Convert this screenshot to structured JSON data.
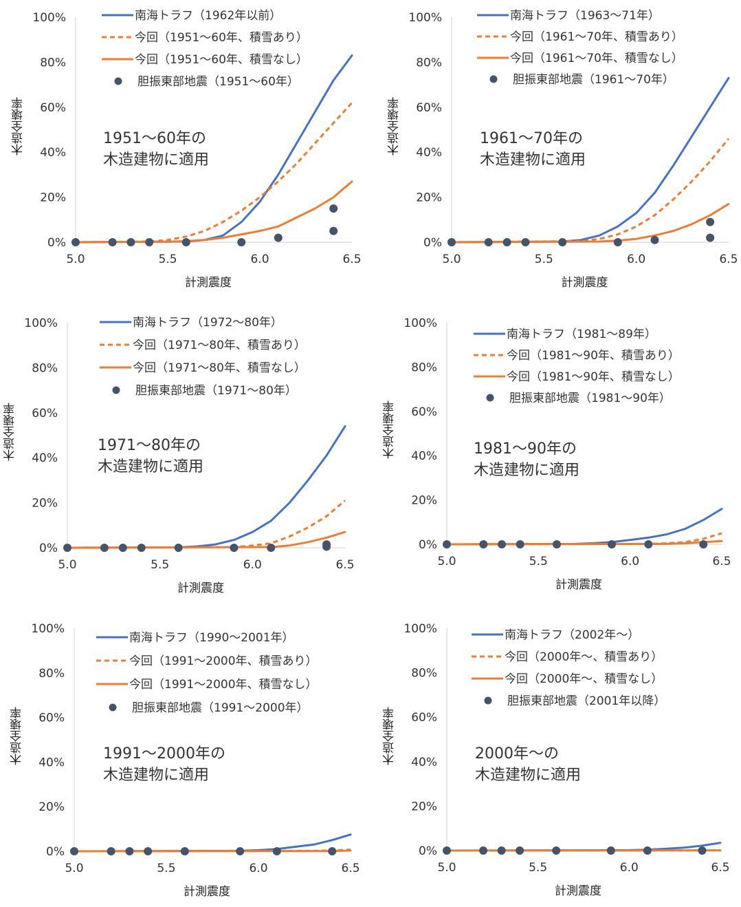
{
  "chart_data": [
    {
      "type": "line",
      "xlabel": "計測震度",
      "ylabel": "木造全壊率",
      "xlim": [
        5.0,
        6.5
      ],
      "ylim": [
        0,
        100
      ],
      "xticks": [
        "5.0",
        "5.5",
        "6.0",
        "6.5"
      ],
      "yticks": [
        "0%",
        "20%",
        "40%",
        "60%",
        "80%",
        "100%"
      ],
      "annotation": [
        "1951〜60年の",
        "木造建物に適用"
      ],
      "series": [
        {
          "name": "南海トラフ（1962年以前）",
          "style": "solid",
          "color": "#4472c4",
          "x": [
            5.0,
            5.6,
            5.7,
            5.8,
            5.9,
            6.0,
            6.1,
            6.2,
            6.3,
            6.4,
            6.5
          ],
          "y": [
            0,
            0.3,
            1,
            3,
            9,
            18,
            30,
            44,
            58,
            72,
            83
          ]
        },
        {
          "name": "今回（1951〜60年、積雪あり）",
          "style": "dashed",
          "color": "#ed7d31",
          "x": [
            5.0,
            5.4,
            5.5,
            5.6,
            5.7,
            5.8,
            5.9,
            6.0,
            6.1,
            6.2,
            6.3,
            6.4,
            6.5
          ],
          "y": [
            0,
            0.3,
            1,
            2.5,
            5,
            9,
            14,
            20,
            27,
            35,
            44,
            53,
            62
          ]
        },
        {
          "name": "今回（1951〜60年、積雪なし）",
          "style": "solid",
          "color": "#ed7d31",
          "x": [
            5.0,
            5.5,
            5.6,
            5.7,
            5.8,
            5.9,
            6.0,
            6.1,
            6.2,
            6.3,
            6.4,
            6.5
          ],
          "y": [
            0,
            0.2,
            0.5,
            1,
            2,
            3.5,
            5,
            7,
            11,
            15,
            20,
            27
          ]
        },
        {
          "name": "胆振東部地震（1951〜60年）",
          "style": "scatter",
          "color": "#44546a",
          "x": [
            5.0,
            5.2,
            5.3,
            5.4,
            5.6,
            5.9,
            6.1,
            6.4,
            6.4
          ],
          "y": [
            0,
            0,
            0,
            0,
            0,
            0,
            2,
            15,
            5
          ]
        }
      ]
    },
    {
      "type": "line",
      "xlabel": "計測震度",
      "ylabel": "木造全壊率",
      "xlim": [
        5.0,
        6.5
      ],
      "ylim": [
        0,
        100
      ],
      "xticks": [
        "5.0",
        "5.5",
        "6.0",
        "6.5"
      ],
      "yticks": [
        "0%",
        "20%",
        "40%",
        "60%",
        "80%",
        "100%"
      ],
      "annotation": [
        "1961〜70年の",
        "木造建物に適用"
      ],
      "series": [
        {
          "name": "南海トラフ（1963〜71年）",
          "style": "solid",
          "color": "#4472c4",
          "x": [
            5.0,
            5.6,
            5.7,
            5.8,
            5.9,
            6.0,
            6.1,
            6.2,
            6.3,
            6.4,
            6.5
          ],
          "y": [
            0,
            0.3,
            1,
            3,
            7,
            13,
            22,
            34,
            47,
            60,
            73
          ]
        },
        {
          "name": "今回（1961〜70年、積雪あり）",
          "style": "dashed",
          "color": "#ed7d31",
          "x": [
            5.0,
            5.7,
            5.8,
            5.9,
            6.0,
            6.1,
            6.2,
            6.3,
            6.4,
            6.5
          ],
          "y": [
            0,
            0.5,
            1.5,
            3.5,
            7,
            12,
            19,
            27,
            36,
            46
          ]
        },
        {
          "name": "今回（1961〜70年、積雪なし）",
          "style": "solid",
          "color": "#ed7d31",
          "x": [
            5.0,
            5.8,
            5.9,
            6.0,
            6.1,
            6.2,
            6.3,
            6.4,
            6.5
          ],
          "y": [
            0,
            0.3,
            0.7,
            1.5,
            3,
            5,
            8,
            12,
            17
          ]
        },
        {
          "name": "胆振東部地震（1961〜70年）",
          "style": "scatter",
          "color": "#44546a",
          "x": [
            5.0,
            5.2,
            5.3,
            5.4,
            5.6,
            5.9,
            6.1,
            6.4,
            6.4
          ],
          "y": [
            0,
            0,
            0,
            0,
            0,
            0,
            1,
            9,
            2
          ]
        }
      ]
    },
    {
      "type": "line",
      "xlabel": "計測震度",
      "ylabel": "木造全壊率",
      "xlim": [
        5.0,
        6.5
      ],
      "ylim": [
        0,
        100
      ],
      "xticks": [
        "5.0",
        "5.5",
        "6.0",
        "6.5"
      ],
      "yticks": [
        "0%",
        "20%",
        "40%",
        "60%",
        "80%",
        "100%"
      ],
      "annotation": [
        "1971〜80年の",
        "木造建物に適用"
      ],
      "series": [
        {
          "name": "南海トラフ（1972〜80年）",
          "style": "solid",
          "color": "#4472c4",
          "x": [
            5.0,
            5.6,
            5.7,
            5.8,
            5.9,
            6.0,
            6.1,
            6.2,
            6.3,
            6.4,
            6.5
          ],
          "y": [
            0,
            0.2,
            0.6,
            1.5,
            3.5,
            7,
            12,
            20,
            30,
            41,
            54
          ]
        },
        {
          "name": "今回（1971〜80年、積雪あり）",
          "style": "dashed",
          "color": "#ed7d31",
          "x": [
            5.0,
            5.9,
            6.0,
            6.1,
            6.2,
            6.3,
            6.4,
            6.5
          ],
          "y": [
            0,
            0.3,
            1,
            2,
            5,
            9,
            14,
            21
          ]
        },
        {
          "name": "今回（1971〜80年、積雪なし）",
          "style": "solid",
          "color": "#ed7d31",
          "x": [
            5.0,
            6.1,
            6.2,
            6.3,
            6.4,
            6.5
          ],
          "y": [
            0,
            0.3,
            1,
            2.5,
            4.5,
            7
          ]
        },
        {
          "name": "胆振東部地震（1971〜80年）",
          "style": "scatter",
          "color": "#44546a",
          "x": [
            5.0,
            5.2,
            5.3,
            5.4,
            5.6,
            5.9,
            6.1,
            6.4,
            6.4
          ],
          "y": [
            0,
            0,
            0,
            0,
            0,
            0,
            0,
            1.5,
            0.5
          ]
        }
      ]
    },
    {
      "type": "line",
      "xlabel": "計測震度",
      "ylabel": "木造全壊率",
      "xlim": [
        5.0,
        6.5
      ],
      "ylim": [
        0,
        100
      ],
      "xticks": [
        "5.0",
        "5.5",
        "6.0",
        "6.5"
      ],
      "yticks": [
        "0%",
        "20%",
        "40%",
        "60%",
        "80%",
        "100%"
      ],
      "annotation": [
        "1981〜90年の",
        "木造建物に適用"
      ],
      "series": [
        {
          "name": "南海トラフ（1981〜89年）",
          "style": "solid",
          "color": "#4472c4",
          "x": [
            5.0,
            5.7,
            5.8,
            5.9,
            6.0,
            6.1,
            6.2,
            6.3,
            6.4,
            6.5
          ],
          "y": [
            0,
            0.2,
            0.5,
            1,
            2,
            3,
            4.5,
            7,
            11,
            16
          ]
        },
        {
          "name": "今回（1981〜90年、積雪あり）",
          "style": "dashed",
          "color": "#ed7d31",
          "x": [
            5.0,
            6.1,
            6.2,
            6.3,
            6.4,
            6.5
          ],
          "y": [
            0,
            0.2,
            0.5,
            1,
            2.5,
            5
          ]
        },
        {
          "name": "今回（1981〜90年、積雪なし）",
          "style": "solid",
          "color": "#ed7d31",
          "x": [
            5.0,
            6.2,
            6.3,
            6.4,
            6.5
          ],
          "y": [
            0,
            0.2,
            0.5,
            1,
            1.5
          ]
        },
        {
          "name": "胆振東部地震（1981〜90年）",
          "style": "scatter",
          "color": "#44546a",
          "x": [
            5.0,
            5.2,
            5.3,
            5.4,
            5.6,
            5.9,
            6.1,
            6.4
          ],
          "y": [
            0,
            0,
            0,
            0,
            0,
            0,
            0,
            0
          ]
        }
      ]
    },
    {
      "type": "line",
      "xlabel": "計測震度",
      "ylabel": "木造全壊率",
      "xlim": [
        5.0,
        6.5
      ],
      "ylim": [
        0,
        100
      ],
      "xticks": [
        "5.0",
        "5.5",
        "6.0",
        "6.5"
      ],
      "yticks": [
        "0%",
        "20%",
        "40%",
        "60%",
        "80%",
        "100%"
      ],
      "annotation": [
        "1991〜2000年の",
        "木造建物に適用"
      ],
      "series": [
        {
          "name": "南海トラフ（1990〜2001年）",
          "style": "solid",
          "color": "#4472c4",
          "x": [
            5.0,
            5.9,
            6.0,
            6.1,
            6.2,
            6.3,
            6.4,
            6.5
          ],
          "y": [
            0,
            0.2,
            0.5,
            1,
            2,
            3,
            5,
            7.5
          ]
        },
        {
          "name": "今回（1991〜2000年、積雪あり）",
          "style": "dashed",
          "color": "#ed7d31",
          "x": [
            5.0,
            6.3,
            6.4,
            6.5
          ],
          "y": [
            0,
            0.2,
            0.4,
            0.7
          ]
        },
        {
          "name": "今回（1991〜2000年、積雪なし）",
          "style": "solid",
          "color": "#ed7d31",
          "x": [
            5.0,
            6.4,
            6.5
          ],
          "y": [
            0,
            0.1,
            0.3
          ]
        },
        {
          "name": "胆振東部地震（1991〜2000年）",
          "style": "scatter",
          "color": "#44546a",
          "x": [
            5.0,
            5.2,
            5.3,
            5.4,
            5.6,
            5.9,
            6.1,
            6.4
          ],
          "y": [
            0,
            0,
            0,
            0,
            0,
            0,
            0,
            0
          ]
        }
      ]
    },
    {
      "type": "line",
      "xlabel": "計測震度",
      "ylabel": "木造全壊率",
      "xlim": [
        5.0,
        6.5
      ],
      "ylim": [
        0,
        100
      ],
      "xticks": [
        "5.0",
        "5.5",
        "6.0",
        "6.5"
      ],
      "yticks": [
        "0%",
        "20%",
        "40%",
        "60%",
        "80%",
        "100%"
      ],
      "annotation": [
        "2000年〜の",
        "木造建物に適用"
      ],
      "series": [
        {
          "name": "南海トラフ（2002年〜）",
          "style": "solid",
          "color": "#4472c4",
          "x": [
            5.0,
            6.0,
            6.1,
            6.2,
            6.3,
            6.4,
            6.5
          ],
          "y": [
            0,
            0.2,
            0.4,
            0.8,
            1.3,
            2.2,
            3.5
          ]
        },
        {
          "name": "今回（2000年〜、積雪あり）",
          "style": "dashed",
          "color": "#ed7d31",
          "x": [
            5.0,
            6.4,
            6.5
          ],
          "y": [
            0,
            0.1,
            0.2
          ]
        },
        {
          "name": "今回（2000年〜、積雪なし）",
          "style": "solid",
          "color": "#ed7d31",
          "x": [
            5.0,
            6.5
          ],
          "y": [
            0,
            0.1
          ]
        },
        {
          "name": "胆振東部地震（2001年以降）",
          "style": "scatter",
          "color": "#44546a",
          "x": [
            5.0,
            5.2,
            5.3,
            5.4,
            5.6,
            5.9,
            6.1,
            6.4
          ],
          "y": [
            0,
            0,
            0,
            0,
            0,
            0,
            0,
            0
          ]
        }
      ]
    }
  ]
}
